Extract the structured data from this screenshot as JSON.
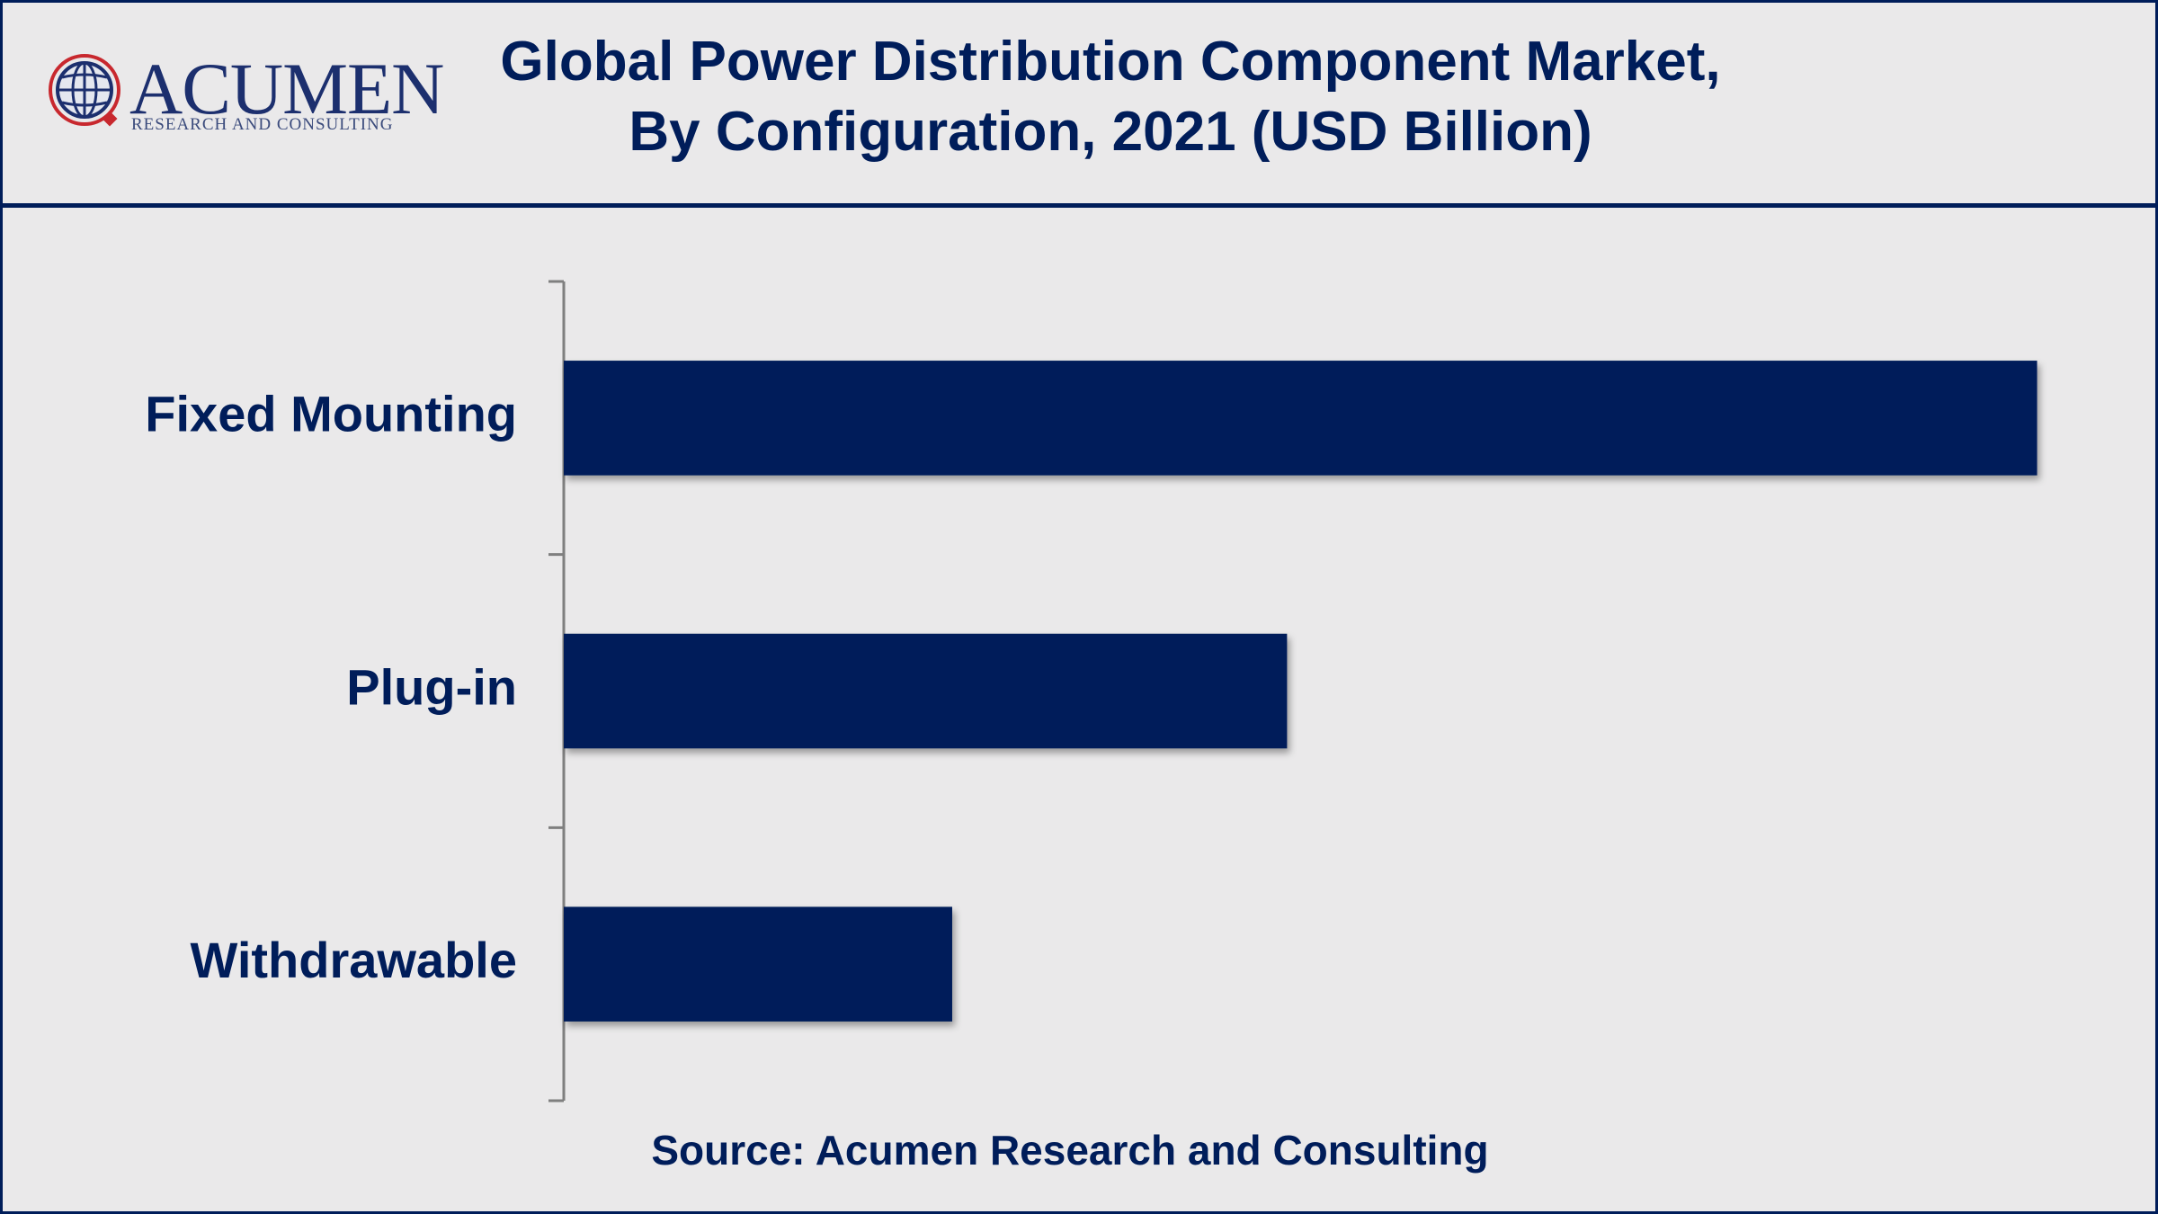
{
  "logo": {
    "name": "ACUMEN",
    "tagline": "RESEARCH AND CONSULTING",
    "icon": "globe-icon"
  },
  "header": {
    "title_line1": "Global Power Distribution Component Market,",
    "title_line2": "By Configuration, 2021 (USD Billion)"
  },
  "chart_data": {
    "type": "bar",
    "orientation": "horizontal",
    "categories": [
      "Fixed Mounting",
      "Plug-in",
      "Withdrawable"
    ],
    "values": [
      4.4,
      2.16,
      1.16
    ],
    "title": "Global Power Distribution Component Market, By Configuration, 2021 (USD Billion)",
    "xlabel": "",
    "ylabel": "",
    "xlim": [
      0,
      4.6
    ],
    "grid": false,
    "legend": "none",
    "bar_color": "#001d5a"
  },
  "footer": {
    "source": "Source: Acumen Research and Consulting"
  },
  "colors": {
    "background": "#eae9ea",
    "accent": "#001d5a",
    "axis": "#7f7f7f"
  }
}
